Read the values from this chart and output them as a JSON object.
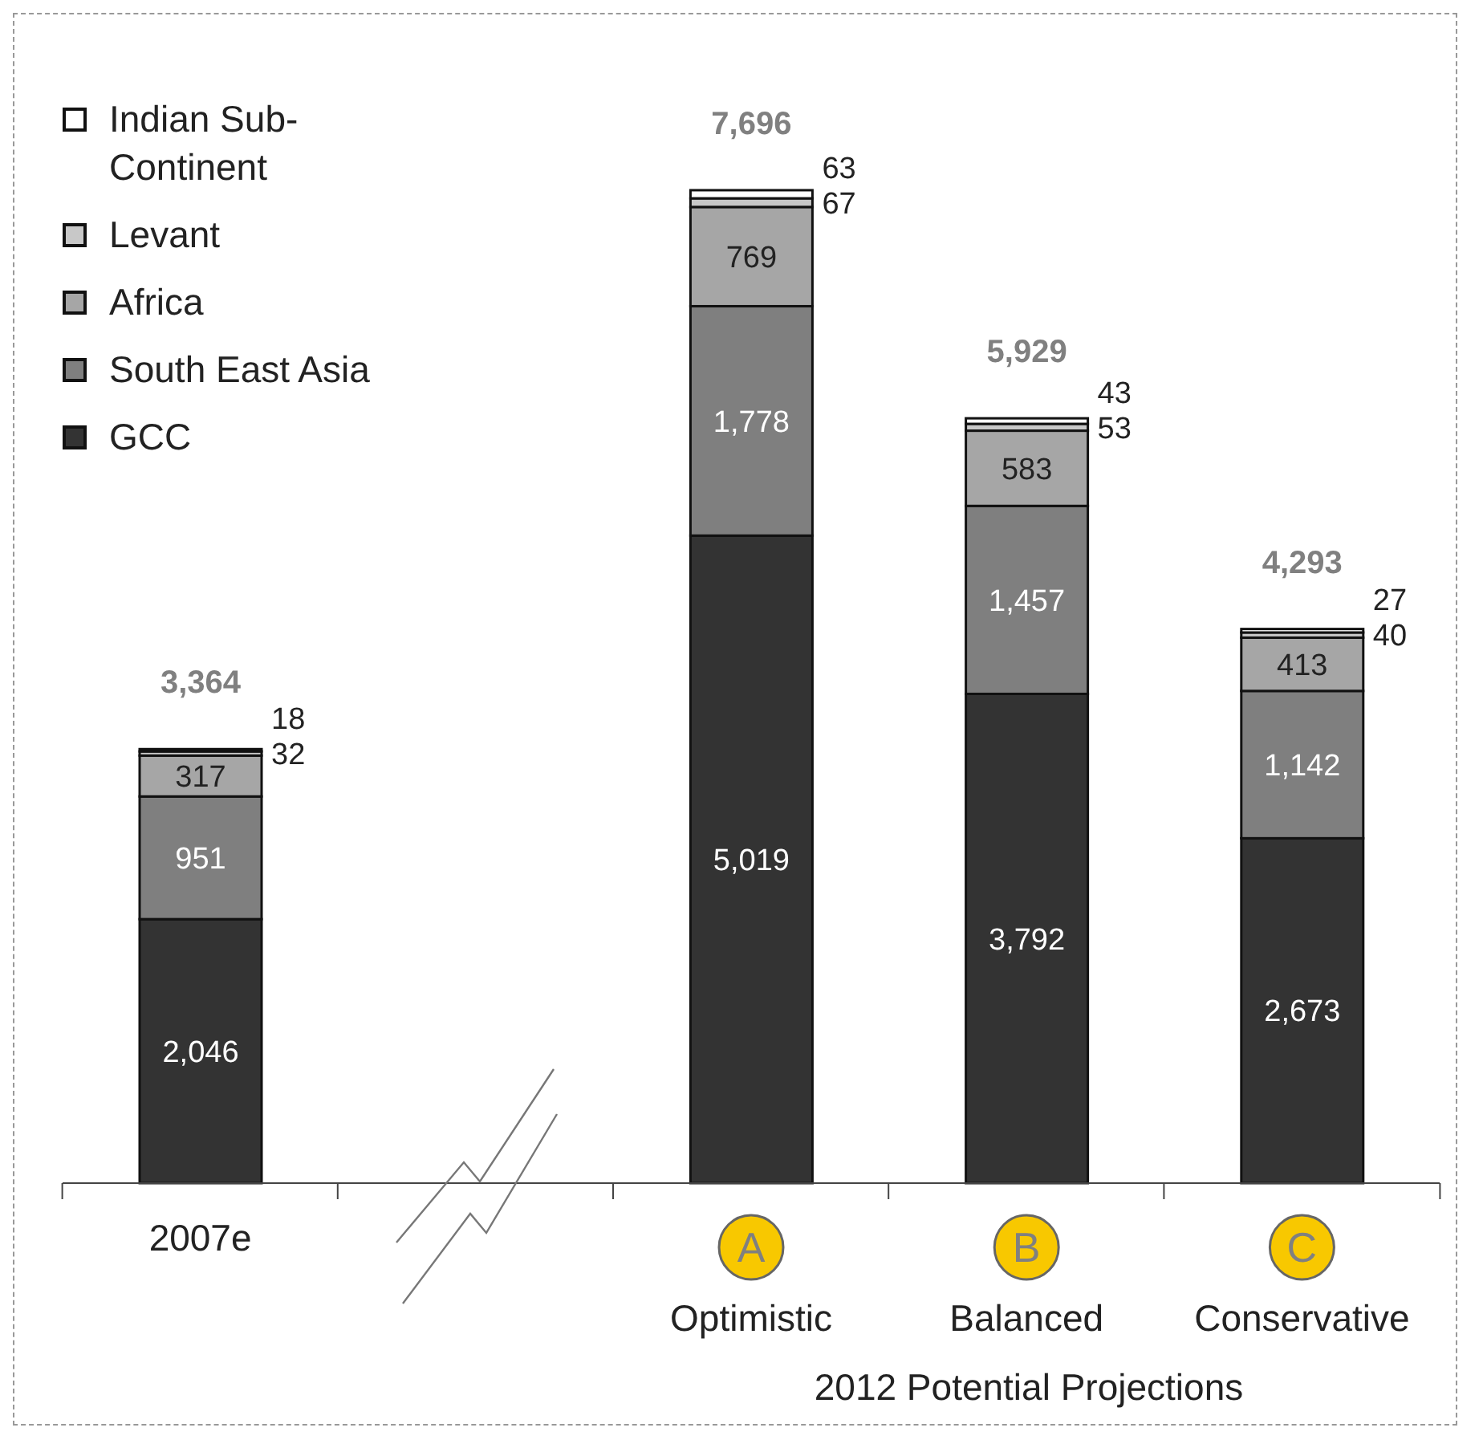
{
  "chart_data": {
    "type": "bar",
    "stacked": true,
    "categories": [
      "2007e",
      null,
      "Optimistic",
      "Balanced",
      "Conservative"
    ],
    "series": [
      {
        "name": "GCC",
        "color": "#333333",
        "values": [
          2046,
          null,
          5019,
          3792,
          2673
        ],
        "value_labels": [
          "2,046",
          null,
          "5,019",
          "3,792",
          "2,673"
        ]
      },
      {
        "name": "South East Asia",
        "color": "#7f7f7f",
        "values": [
          951,
          null,
          1778,
          1457,
          1142
        ],
        "value_labels": [
          "951",
          null,
          "1,778",
          "1,457",
          "1,142"
        ]
      },
      {
        "name": "Africa",
        "color": "#a6a6a6",
        "values": [
          317,
          null,
          769,
          583,
          413
        ],
        "value_labels": [
          "317",
          null,
          "769",
          "583",
          "413"
        ]
      },
      {
        "name": "Levant",
        "color": "#c8c8c8",
        "values": [
          32,
          null,
          67,
          53,
          40
        ],
        "value_labels": [
          "32",
          null,
          "67",
          "53",
          "40"
        ]
      },
      {
        "name": "Indian Sub-Continent",
        "color": "#ffffff",
        "values": [
          18,
          null,
          63,
          43,
          27
        ],
        "value_labels": [
          "18",
          null,
          "63",
          "43",
          "27"
        ]
      }
    ],
    "totals": [
      "3,364",
      null,
      "7,696",
      "5,929",
      "4,293"
    ],
    "xlabel": "2012 Potential Projections",
    "annotations": [
      "A",
      "B",
      "C"
    ],
    "legend": "top left"
  }
}
